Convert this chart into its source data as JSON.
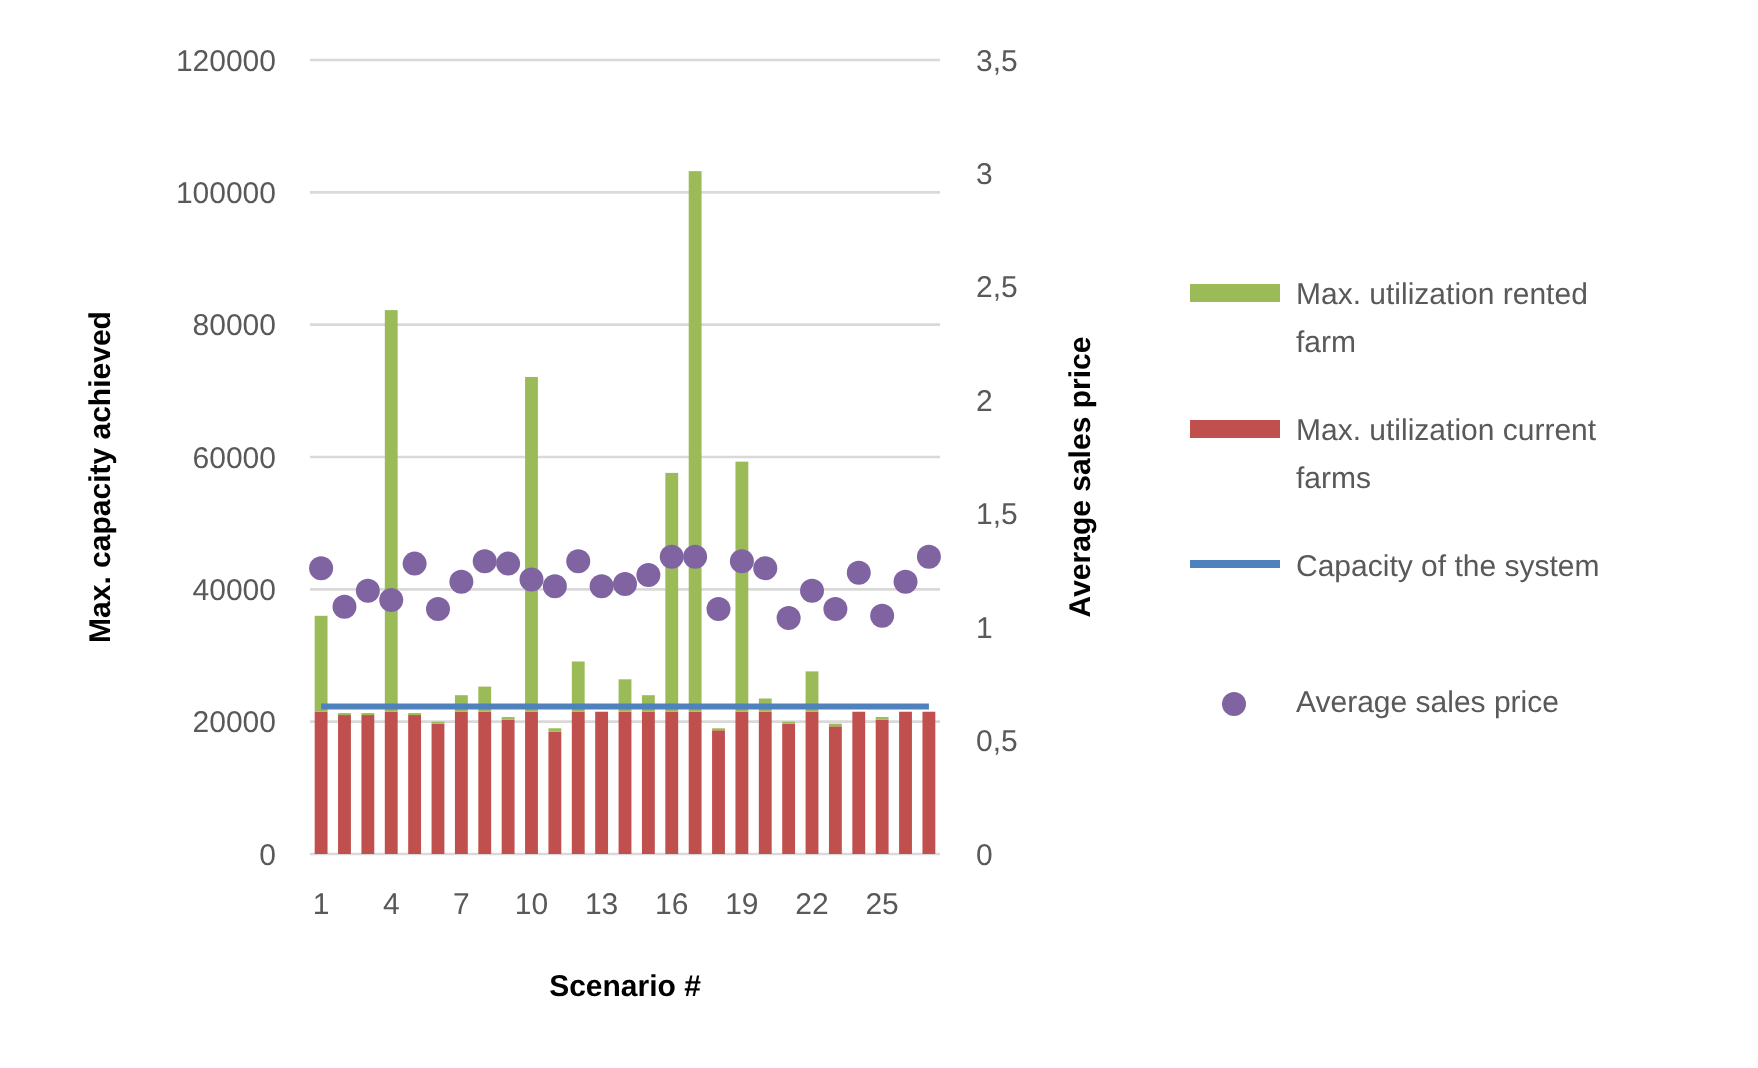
{
  "chart_data": {
    "type": "bar",
    "stacked": true,
    "categories": [
      "1",
      null,
      null,
      "4",
      null,
      null,
      "7",
      null,
      null,
      "10",
      null,
      null,
      "13",
      null,
      null,
      "16",
      null,
      null,
      "19",
      null,
      null,
      "22",
      null,
      null,
      "25",
      null,
      null
    ],
    "xlabel": "Scenario #",
    "ylabel": "Max. capacity  achieved",
    "y2label": "Average sales  price",
    "ylim": [
      0,
      120000
    ],
    "yticks": [
      0,
      20000,
      40000,
      60000,
      80000,
      100000,
      120000
    ],
    "y2lim": [
      0,
      3.5
    ],
    "y2ticks": [
      0,
      {
        "value": 0.5,
        "label": "0,5"
      },
      1,
      {
        "value": 1.5,
        "label": "1,5"
      },
      2,
      {
        "value": 2.5,
        "label": "2,5"
      },
      3,
      {
        "value": 3.5,
        "label": "3,5"
      }
    ],
    "grid": "y",
    "legend": "right",
    "series": [
      {
        "name": "Max. utilization current farms",
        "color": "#c0504d",
        "values": [
          21500,
          21000,
          21000,
          21500,
          21000,
          19700,
          21500,
          21500,
          20300,
          21500,
          18500,
          21500,
          21500,
          21500,
          21500,
          21500,
          21500,
          18700,
          21500,
          21500,
          19700,
          21500,
          19300,
          21500,
          20300,
          21500,
          21500
        ]
      },
      {
        "name": "Max. utilization rented farm",
        "color": "#9bbb59",
        "values": [
          14500,
          300,
          300,
          60700,
          300,
          300,
          2500,
          3800,
          400,
          50600,
          500,
          7600,
          0,
          4900,
          2500,
          36100,
          81700,
          300,
          37800,
          2000,
          300,
          6100,
          400,
          0,
          400,
          0,
          0
        ]
      },
      {
        "name": "Capacity of the system",
        "type": "line",
        "color": "#4f81bd",
        "values": [
          22300,
          22300,
          22300,
          22300,
          22300,
          22300,
          22300,
          22300,
          22300,
          22300,
          22300,
          22300,
          22300,
          22300,
          22300,
          22300,
          22300,
          22300,
          22300,
          22300,
          22300,
          22300,
          22300,
          22300,
          22300,
          22300,
          22300
        ]
      },
      {
        "name": "Average sales price",
        "type": "scatter",
        "axis": "y2",
        "color": "#8064a2",
        "marker": "circle",
        "values": [
          1.26,
          1.09,
          1.16,
          1.12,
          1.28,
          1.08,
          1.2,
          1.29,
          1.28,
          1.21,
          1.18,
          1.29,
          1.18,
          1.19,
          1.23,
          1.31,
          1.31,
          1.08,
          1.29,
          1.26,
          1.04,
          1.16,
          1.08,
          1.24,
          1.05,
          1.2,
          1.31
        ]
      }
    ]
  }
}
